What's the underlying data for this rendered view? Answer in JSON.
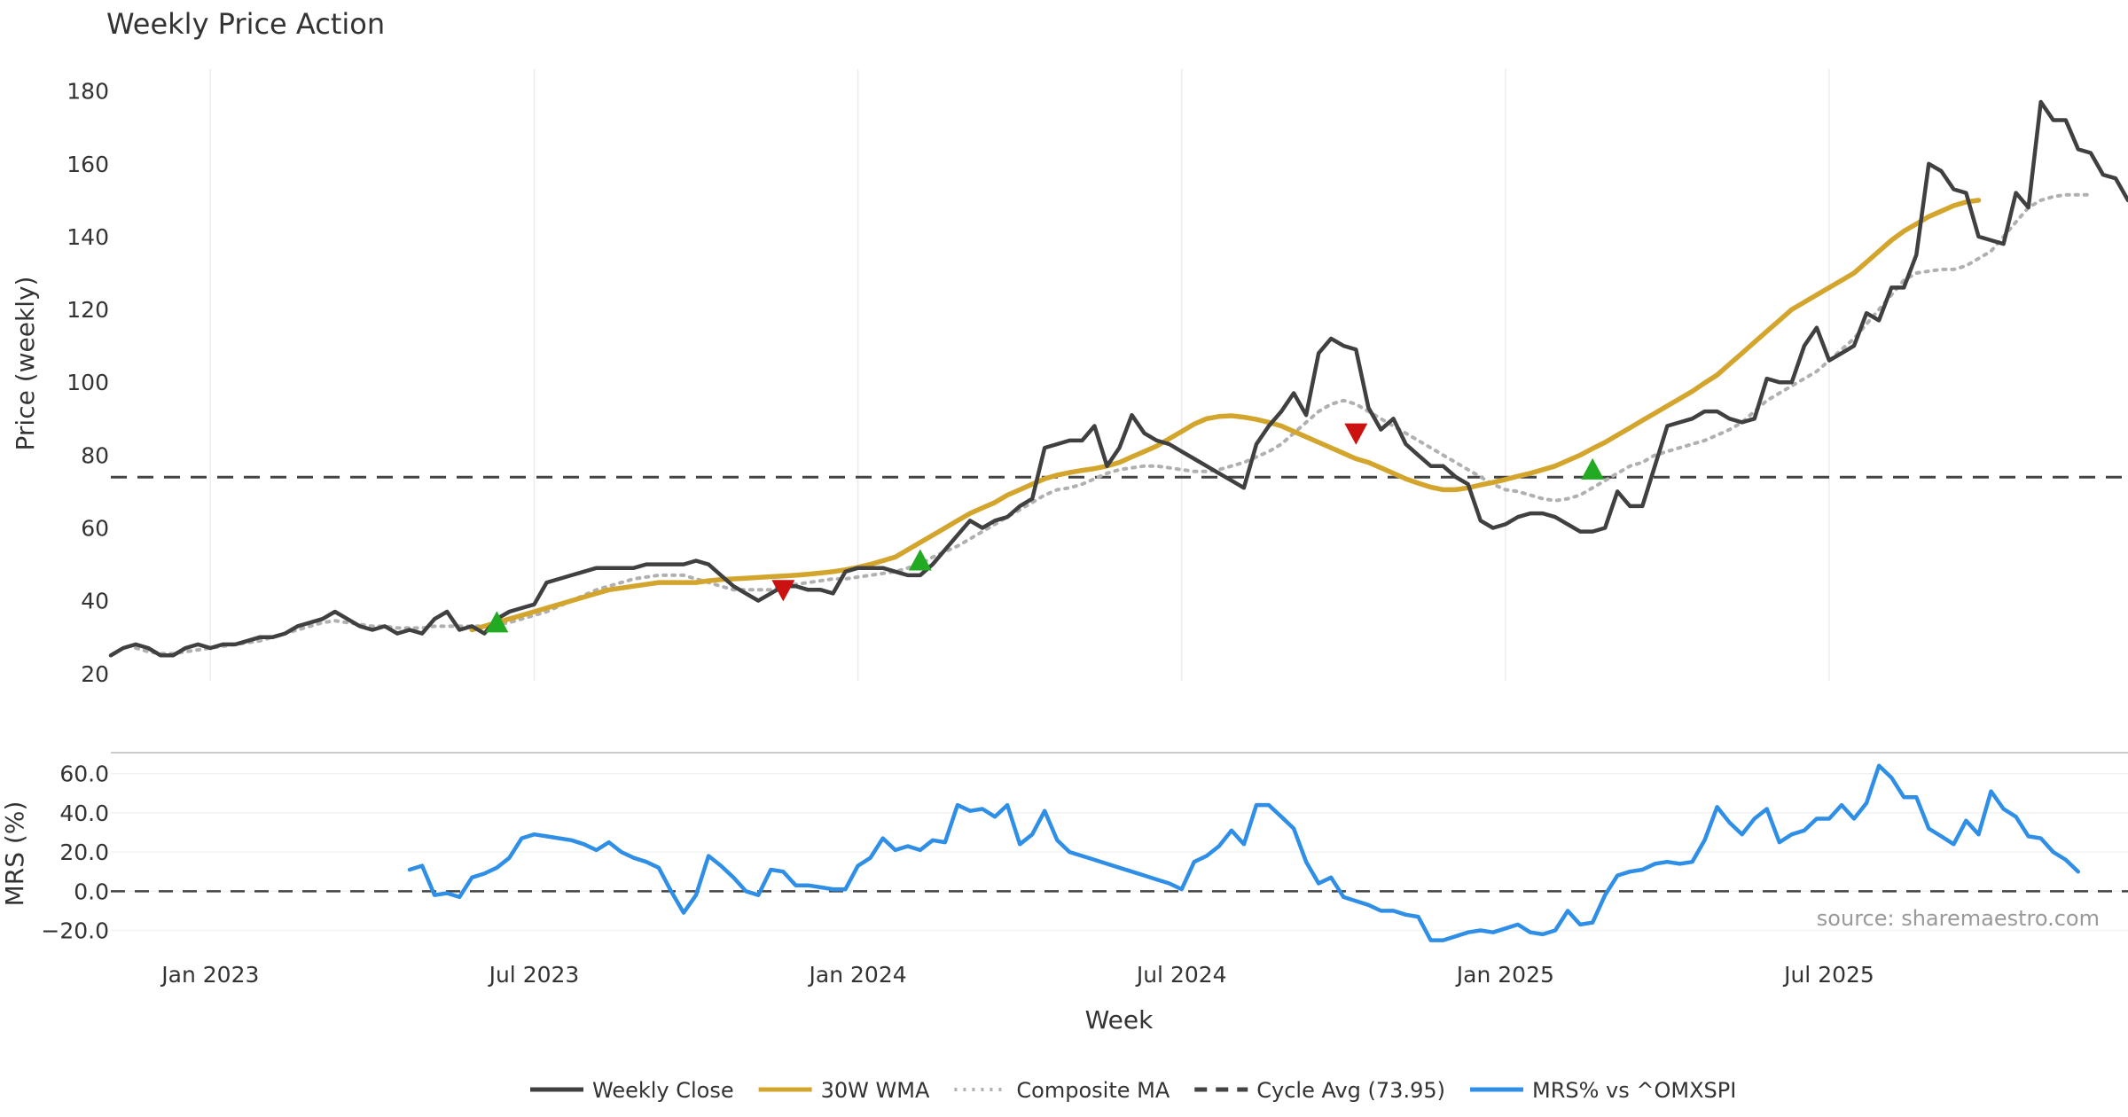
{
  "colors": {
    "close": "#404040",
    "wma": "#d4a52c",
    "composite": "#b0b0b0",
    "cycle": "#444444",
    "mrs": "#2f8fe6",
    "buy": "#22aa22",
    "sell": "#cc1111",
    "grid": "#ececec"
  },
  "chart_data": {
    "type": "line",
    "title": "Weekly Price Action",
    "xlabel": "Week",
    "source": "source: sharemaestro.com",
    "x_ticks": [
      "Jan 2023",
      "Jul 2023",
      "Jan 2024",
      "Jul 2024",
      "Jan 2025",
      "Jul 2025"
    ],
    "x_tick_weeks": [
      8,
      34,
      60,
      86,
      112,
      138
    ],
    "price_panel": {
      "ylabel": "Price (weekly)",
      "ylim": [
        18,
        186
      ],
      "yticks": [
        20,
        40,
        60,
        80,
        100,
        120,
        140,
        160,
        180
      ],
      "cycle_avg": 73.95,
      "markers": [
        {
          "type": "buy",
          "week": 31,
          "value": 34
        },
        {
          "type": "sell",
          "week": 54,
          "value": 43
        },
        {
          "type": "buy",
          "week": 65,
          "value": 51
        },
        {
          "type": "sell",
          "week": 100,
          "value": 86
        },
        {
          "type": "buy",
          "week": 119,
          "value": 76
        }
      ],
      "series": [
        {
          "name": "Weekly Close",
          "key": "close",
          "start_week": 0,
          "values": [
            25,
            27,
            28,
            27,
            25,
            25,
            27,
            28,
            27,
            28,
            28,
            29,
            30,
            30,
            31,
            33,
            34,
            35,
            37,
            35,
            33,
            32,
            33,
            31,
            32,
            31,
            35,
            37,
            32,
            33,
            31,
            35,
            37,
            38,
            39,
            45,
            46,
            47,
            48,
            49,
            49,
            49,
            49,
            50,
            50,
            50,
            50,
            51,
            50,
            47,
            44,
            42,
            40,
            42,
            44,
            44,
            43,
            43,
            42,
            48,
            49,
            49,
            49,
            48,
            47,
            47,
            50,
            54,
            58,
            62,
            60,
            62,
            63,
            66,
            68,
            82,
            83,
            84,
            84,
            88,
            77,
            82,
            91,
            86,
            84,
            83,
            81,
            79,
            77,
            75,
            73,
            71,
            83,
            88,
            92,
            97,
            91,
            108,
            112,
            110,
            109,
            93,
            87,
            90,
            83,
            80,
            77,
            77,
            74,
            72,
            62,
            60,
            61,
            63,
            64,
            64,
            63,
            61,
            59,
            59,
            60,
            70,
            66,
            66,
            77,
            88,
            89,
            90,
            92,
            92,
            90,
            89,
            90,
            101,
            100,
            100,
            110,
            115,
            106,
            108,
            110,
            119,
            117,
            126,
            126,
            135,
            160,
            158,
            153,
            152,
            140,
            139,
            138,
            152,
            148,
            177,
            172,
            172,
            164,
            163,
            157,
            156,
            150
          ]
        },
        {
          "name": "30W WMA",
          "key": "wma",
          "start_week": 29,
          "values": [
            32,
            33,
            34,
            35,
            36,
            37,
            38,
            39,
            40,
            41,
            42,
            43,
            43.5,
            44,
            44.5,
            45,
            45,
            45,
            45,
            45.5,
            45.8,
            46,
            46.2,
            46.4,
            46.6,
            46.8,
            47,
            47.3,
            47.6,
            48,
            48.5,
            49.2,
            50,
            51,
            52,
            54,
            56,
            58,
            60,
            62,
            64,
            65.5,
            67,
            69,
            70.5,
            72,
            73.5,
            74.5,
            75.2,
            75.8,
            76.3,
            77,
            78,
            79.5,
            81,
            82.5,
            84.5,
            86.5,
            88.5,
            90,
            90.6,
            90.8,
            90.4,
            89.8,
            89,
            88,
            86.5,
            85,
            83.5,
            82,
            80.5,
            79,
            78,
            76.5,
            75,
            73.5,
            72.3,
            71.2,
            70.5,
            70.5,
            71,
            71.8,
            72.5,
            73.3,
            74.2,
            75,
            76,
            77,
            78.5,
            80,
            81.8,
            83.5,
            85.5,
            87.5,
            89.5,
            91.5,
            93.5,
            95.5,
            97.5,
            99.8,
            102,
            105,
            108,
            111,
            114,
            117,
            120,
            122,
            124,
            126,
            128,
            130,
            133,
            136,
            139,
            141.5,
            143.5,
            145.5,
            147,
            148.5,
            149.5,
            150
          ]
        },
        {
          "name": "Composite MA",
          "key": "composite",
          "start_week": 2,
          "values": [
            27,
            26,
            25.5,
            25.5,
            26,
            26.5,
            27,
            27.5,
            28,
            28.5,
            29,
            30,
            31,
            32,
            33,
            34,
            34.5,
            34,
            33.5,
            33,
            33,
            32.5,
            32.5,
            32.5,
            33,
            33,
            33,
            33,
            33,
            33.5,
            34,
            35,
            36,
            37,
            38.5,
            40,
            41.5,
            43,
            44,
            45,
            46,
            46.5,
            47,
            47,
            47,
            46,
            45,
            44,
            43,
            43,
            43,
            43,
            44,
            44.5,
            45,
            45.5,
            46,
            46,
            46.5,
            47,
            47.5,
            48,
            49,
            50,
            52,
            53.5,
            55,
            57,
            59,
            61,
            63,
            65,
            67,
            69,
            70.5,
            71,
            72,
            73.5,
            75,
            76,
            76.5,
            77,
            77,
            76.5,
            76,
            75.5,
            75.5,
            76,
            77,
            78,
            79.5,
            81,
            83,
            86,
            89,
            92,
            94,
            95,
            94,
            92,
            90,
            88,
            86,
            84,
            82,
            80,
            78,
            76,
            74,
            72,
            70.5,
            70,
            69,
            68,
            67.5,
            68,
            69,
            71,
            73,
            75,
            77,
            78,
            80,
            81,
            82,
            83,
            84,
            85.5,
            87,
            89,
            92,
            95,
            97,
            99,
            101,
            103,
            106,
            109,
            112,
            116,
            120,
            124,
            128,
            130,
            130.5,
            131,
            131,
            132,
            134,
            136,
            140,
            144,
            148,
            150,
            151,
            151.5,
            151.5,
            151.5
          ]
        },
        {
          "name": "Cycle Avg (73.95)",
          "key": "cycle",
          "type": "hline",
          "value": 73.95
        }
      ]
    },
    "mrs_panel": {
      "ylabel": "MRS (%)",
      "ylim": [
        -27,
        68
      ],
      "yticks": [
        -20.0,
        0.0,
        20.0,
        40.0,
        60.0
      ],
      "ytick_labels": [
        "−20.0",
        "0.0",
        "20.0",
        "40.0",
        "60.0"
      ],
      "zero_line": 0,
      "series": [
        {
          "name": "MRS% vs ^OMXSPI",
          "key": "mrs",
          "start_week": 24,
          "values": [
            11,
            13,
            -2,
            -1,
            -3,
            7,
            9,
            12,
            17,
            27,
            29,
            28,
            27,
            26,
            24,
            21,
            25,
            20,
            17,
            15,
            12,
            0,
            -11,
            -2,
            18,
            13,
            7,
            0,
            -2,
            11,
            10,
            3,
            3,
            2,
            1,
            1,
            13,
            17,
            27,
            21,
            23,
            21,
            26,
            25,
            44,
            41,
            42,
            38,
            44,
            24,
            29,
            41,
            26,
            20,
            18,
            16,
            14,
            12,
            10,
            8,
            6,
            4,
            1,
            15,
            18,
            23,
            31,
            24,
            44,
            44,
            38,
            32,
            15,
            4,
            7,
            -3,
            -5,
            -7,
            -10,
            -10,
            -12,
            -13,
            -25,
            -25,
            -23,
            -21,
            -20,
            -21,
            -19,
            -17,
            -21,
            -22,
            -20,
            -10,
            -17,
            -16,
            -2,
            8,
            10,
            11,
            14,
            15,
            14,
            15,
            26,
            43,
            35,
            29,
            37,
            42,
            25,
            29,
            31,
            37,
            37,
            44,
            37,
            45,
            64,
            58,
            48,
            48,
            32,
            28,
            24,
            36,
            29,
            51,
            42,
            38,
            28,
            27,
            20,
            16,
            10
          ]
        }
      ]
    },
    "legend": [
      {
        "label": "Weekly Close",
        "key": "close",
        "style": "solid"
      },
      {
        "label": "30W WMA",
        "key": "wma",
        "style": "solid"
      },
      {
        "label": "Composite MA",
        "key": "composite",
        "style": "dotted"
      },
      {
        "label": "Cycle Avg (73.95)",
        "key": "cycle",
        "style": "dashed"
      },
      {
        "label": "MRS% vs ^OMXSPI",
        "key": "mrs",
        "style": "solid"
      }
    ]
  }
}
